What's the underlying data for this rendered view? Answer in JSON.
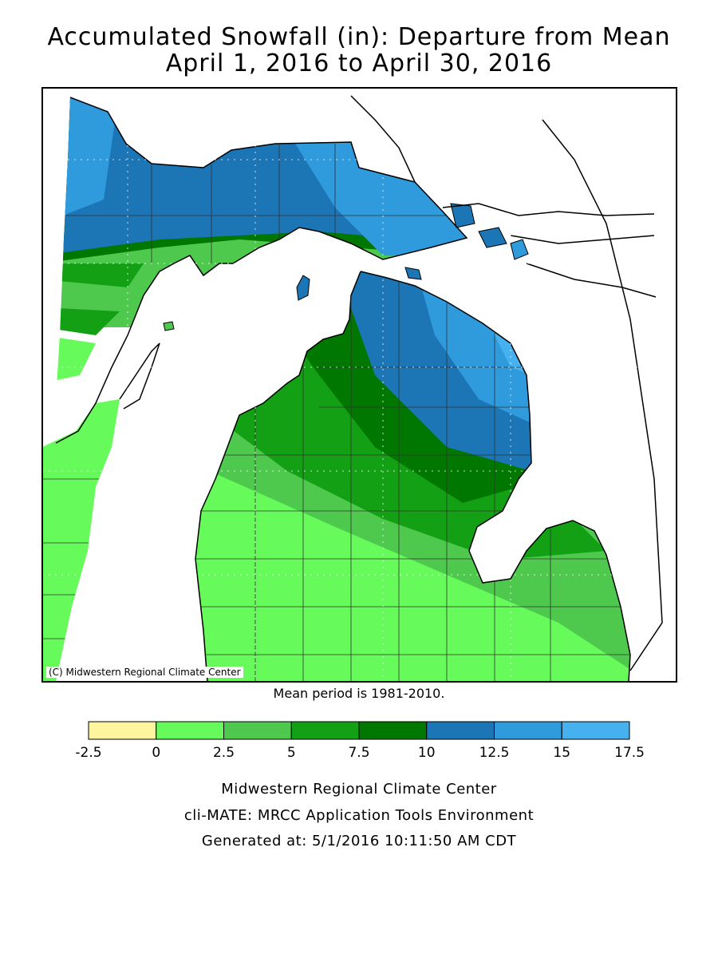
{
  "title": {
    "line1": "Accumulated Snowfall (in): Departure from Mean",
    "line2": "April 1, 2016 to April 30, 2016"
  },
  "credit": "(C) Midwestern Regional Climate Center",
  "mean_note": "Mean period is 1981-2010.",
  "legend": {
    "bins": [
      {
        "from": -2.5,
        "to": 0,
        "color": "#fff59e"
      },
      {
        "from": 0,
        "to": 2.5,
        "color": "#66fa5a"
      },
      {
        "from": 2.5,
        "to": 5,
        "color": "#4ec94e"
      },
      {
        "from": 5,
        "to": 7.5,
        "color": "#14a014"
      },
      {
        "from": 7.5,
        "to": 10,
        "color": "#007800"
      },
      {
        "from": 10,
        "to": 12.5,
        "color": "#1c75b4"
      },
      {
        "from": 12.5,
        "to": 15,
        "color": "#2f9adc"
      },
      {
        "from": 15,
        "to": 17.5,
        "color": "#46b1ee"
      }
    ],
    "ticks": [
      "-2.5",
      "0",
      "2.5",
      "5",
      "7.5",
      "10",
      "12.5",
      "15",
      "17.5"
    ]
  },
  "footer": {
    "line1": "Midwestern Regional Climate Center",
    "line2": "cli-MATE: MRCC Application Tools Environment",
    "line3": "Generated at: 5/1/2016 10:11:50 AM CDT"
  }
}
